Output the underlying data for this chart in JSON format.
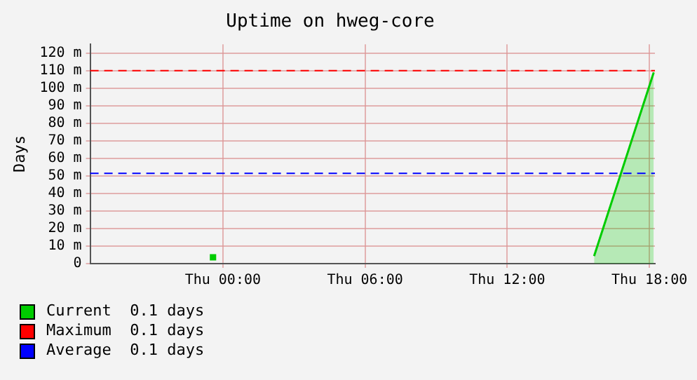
{
  "chart_data": {
    "type": "area",
    "title": "Uptime on hweg-core",
    "ylabel": "Days",
    "xlim": [
      "--01-03T18:24",
      "--01-04T18:14"
    ],
    "xticks": [
      {
        "value": "--01-04T00:00",
        "label": "Thu 00:00"
      },
      {
        "value": "--01-04T06:00",
        "label": "Thu 06:00"
      },
      {
        "value": "--01-04T12:00",
        "label": "Thu 12:00"
      },
      {
        "value": "--01-04T18:00",
        "label": "Thu 18:00"
      }
    ],
    "ylim": [
      0,
      125
    ],
    "yticks": [
      0,
      {
        "value": 10,
        "label": "10 m"
      },
      {
        "value": 20,
        "label": "20 m"
      },
      {
        "value": 30,
        "label": "30 m"
      },
      {
        "value": 40,
        "label": "40 m"
      },
      {
        "value": 50,
        "label": "50 m"
      },
      {
        "value": 60,
        "label": "60 m"
      },
      {
        "value": 70,
        "label": "70 m"
      },
      {
        "value": 80,
        "label": "80 m"
      },
      {
        "value": 90,
        "label": "90 m"
      },
      {
        "value": 100,
        "label": "100 m"
      },
      {
        "value": 110,
        "label": "110 m"
      },
      {
        "value": 120,
        "label": "120 m"
      }
    ],
    "series": [
      {
        "name": "Current  0.1 days",
        "color": "#00cc00",
        "x": [
          "--01-04T15:40",
          "--01-04T18:11"
        ],
        "values": [
          4.3,
          109
        ]
      },
      {
        "type": "scatter",
        "marker": "square",
        "color": "#00cc00",
        "x": [
          "--01-03T23:35"
        ],
        "values": [
          3.6
        ]
      }
    ],
    "ref_lines": [
      {
        "axis": "y",
        "value": 110,
        "label": "Maximum  0.1 days",
        "color": "#ff0000",
        "line_style": "dashed"
      },
      {
        "axis": "y",
        "value": 51.5,
        "label": "Average  0.1 days",
        "color": "#0000ff",
        "line_style": "dashed"
      }
    ],
    "grid": true,
    "legend": "bottom"
  }
}
